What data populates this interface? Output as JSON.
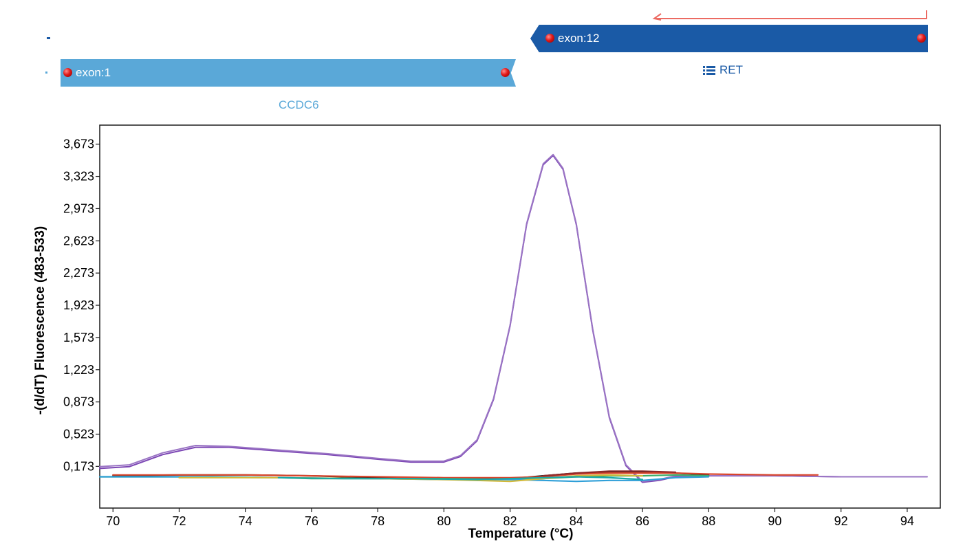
{
  "track": {
    "exon1": {
      "label": "exon:1",
      "color": "#5aa8d8"
    },
    "exon12": {
      "label": "exon:12",
      "color": "#1a5aa6"
    },
    "ccdc6_label": "CCDC6",
    "ret_label": "RET",
    "primer_color": "#ec6a62",
    "list_icon": "list-icon"
  },
  "chart_data": {
    "type": "line",
    "title": "",
    "xlabel": "Temperature (°C)",
    "ylabel": "-(d/dT) Fluorescence (483-533)",
    "xlim": [
      69.6,
      95.0
    ],
    "ylim": [
      -0.28,
      3.88
    ],
    "x_ticks": [
      "70",
      "72",
      "74",
      "76",
      "78",
      "80",
      "82",
      "84",
      "86",
      "88",
      "90",
      "92",
      "94"
    ],
    "y_ticks": [
      "0,173",
      "0,523",
      "0,873",
      "1,223",
      "1,573",
      "1,923",
      "2,273",
      "2,623",
      "2,973",
      "3,323",
      "3,673"
    ],
    "grid": false,
    "series": [
      {
        "color": "#7b45b4",
        "x": [
          69.6,
          70.5,
          71.5,
          72.5,
          73.5,
          75,
          76.5,
          78,
          79,
          80,
          80.5,
          81,
          81.5,
          82,
          82.5,
          83,
          83.3,
          83.6,
          84,
          84.5,
          85,
          85.5,
          86,
          86.5,
          87,
          88,
          90,
          92,
          94.6
        ],
        "y": [
          0.15,
          0.17,
          0.3,
          0.38,
          0.38,
          0.34,
          0.3,
          0.25,
          0.22,
          0.22,
          0.28,
          0.45,
          0.9,
          1.7,
          2.8,
          3.45,
          3.55,
          3.4,
          2.8,
          1.65,
          0.7,
          0.18,
          0.0,
          0.02,
          0.06,
          0.07,
          0.07,
          0.06,
          0.06
        ]
      },
      {
        "color": "#9a74c4",
        "x": [
          69.6,
          70.5,
          71.5,
          72.5,
          73.5,
          75,
          76.5,
          78,
          79,
          80,
          80.5,
          81,
          81.5,
          82,
          82.5,
          83,
          83.3,
          83.6,
          84,
          84.5,
          85,
          85.5,
          86,
          86.5,
          87,
          88,
          90,
          92,
          94.6
        ],
        "y": [
          0.17,
          0.19,
          0.32,
          0.4,
          0.39,
          0.35,
          0.31,
          0.26,
          0.23,
          0.23,
          0.29,
          0.46,
          0.91,
          1.71,
          2.81,
          3.46,
          3.56,
          3.41,
          2.81,
          1.66,
          0.71,
          0.19,
          0.01,
          0.03,
          0.07,
          0.07,
          0.07,
          0.06,
          0.06
        ]
      },
      {
        "color": "#1a1a1a",
        "x": [
          70,
          72,
          74,
          76,
          77,
          78,
          80,
          82,
          83,
          84,
          85,
          86,
          87,
          88
        ],
        "y": [
          0.07,
          0.08,
          0.08,
          0.07,
          0.06,
          0.05,
          0.04,
          0.04,
          0.07,
          0.1,
          0.11,
          0.11,
          0.1,
          0.08
        ]
      },
      {
        "color": "#d9452b",
        "x": [
          70,
          72,
          74,
          76,
          78,
          80,
          82,
          83,
          84,
          85,
          86,
          87,
          88,
          90,
          91.3
        ],
        "y": [
          0.08,
          0.08,
          0.08,
          0.07,
          0.06,
          0.05,
          0.05,
          0.06,
          0.09,
          0.1,
          0.1,
          0.1,
          0.09,
          0.08,
          0.08
        ]
      },
      {
        "color": "#3cae6a",
        "x": [
          69.6,
          71,
          73,
          75,
          76,
          77,
          78,
          80,
          82,
          83,
          84,
          85,
          86,
          87,
          88
        ],
        "y": [
          0.06,
          0.06,
          0.06,
          0.05,
          0.04,
          0.04,
          0.04,
          0.04,
          0.03,
          0.04,
          0.06,
          0.07,
          0.07,
          0.08,
          0.07
        ]
      },
      {
        "color": "#2f9fd8",
        "x": [
          69.6,
          72,
          75,
          78,
          80,
          82,
          83,
          84,
          85,
          86,
          87,
          88
        ],
        "y": [
          0.06,
          0.06,
          0.05,
          0.04,
          0.03,
          0.03,
          0.02,
          0.01,
          0.02,
          0.02,
          0.05,
          0.06
        ]
      },
      {
        "color": "#d2b93a",
        "x": [
          72,
          75,
          78,
          80,
          81,
          82,
          83,
          84,
          85,
          86
        ],
        "y": [
          0.05,
          0.05,
          0.04,
          0.03,
          0.02,
          0.01,
          0.04,
          0.07,
          0.08,
          0.07
        ]
      },
      {
        "color": "#18a8a8",
        "x": [
          75,
          77,
          79,
          81,
          83,
          84,
          85,
          86
        ],
        "y": [
          0.05,
          0.04,
          0.04,
          0.03,
          0.05,
          0.06,
          0.05,
          0.03
        ]
      },
      {
        "color": "#8f2a2a",
        "x": [
          83,
          84,
          85,
          86,
          87
        ],
        "y": [
          0.07,
          0.1,
          0.12,
          0.12,
          0.11
        ]
      }
    ]
  }
}
